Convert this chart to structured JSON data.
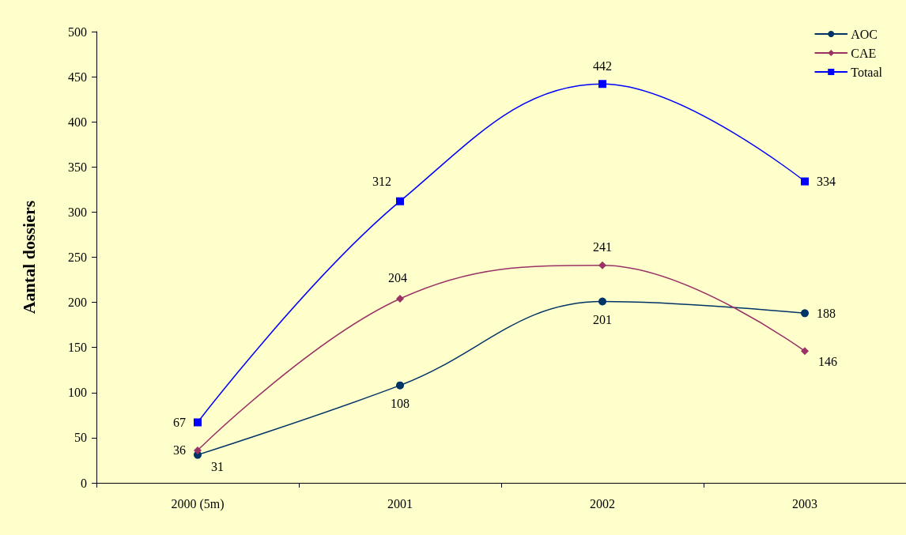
{
  "chart_data": {
    "type": "line",
    "ylabel": "Aantal dossiers",
    "categories": [
      "2000 (5m)",
      "2001",
      "2002",
      "2003"
    ],
    "series": [
      {
        "name": "AOC",
        "color": "#003366",
        "marker": "circle",
        "values": [
          31,
          108,
          201,
          188
        ]
      },
      {
        "name": "CAE",
        "color": "#993366",
        "marker": "diamond",
        "values": [
          36,
          204,
          241,
          146
        ]
      },
      {
        "name": "Totaal",
        "color": "#0000ff",
        "marker": "square",
        "values": [
          67,
          312,
          442,
          334
        ]
      }
    ],
    "ylim": [
      0,
      500
    ],
    "yticks": [
      0,
      50,
      100,
      150,
      200,
      250,
      300,
      350,
      400,
      450,
      500
    ],
    "grid": false,
    "legend": "top right",
    "data_labels": true
  }
}
